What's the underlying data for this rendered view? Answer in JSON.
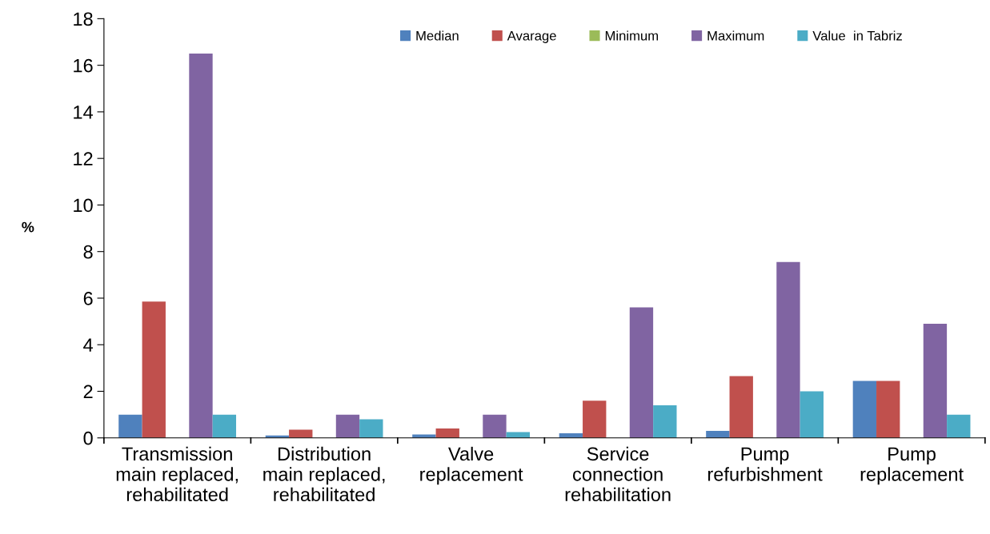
{
  "chart_data": {
    "type": "bar",
    "ylabel": "%",
    "categories": [
      "Transmission\nmain replaced,\nrehabilitated",
      "Distribution\nmain replaced,\nrehabilitated",
      "Valve\nreplacement",
      "Service\nconnection\nrehabilitation",
      "Pump\nrefurbishment",
      "Pump\nreplacement"
    ],
    "series": [
      {
        "name": "Median",
        "color": "#4f81bd",
        "values": [
          1.0,
          0.1,
          0.15,
          0.2,
          0.3,
          2.45
        ]
      },
      {
        "name": "Avarage",
        "color": "#c0504d",
        "values": [
          5.85,
          0.35,
          0.4,
          1.6,
          2.65,
          2.45
        ]
      },
      {
        "name": "Minimum",
        "color": "#9bbb59",
        "values": [
          0,
          0,
          0,
          0,
          0,
          0
        ]
      },
      {
        "name": "Maximum",
        "color": "#8064a2",
        "values": [
          16.5,
          1.0,
          1.0,
          5.6,
          7.55,
          4.9
        ]
      },
      {
        "name": "Value  in Tabriz",
        "color": "#4bacc6",
        "values": [
          1.0,
          0.8,
          0.25,
          1.4,
          2.0,
          1.0
        ]
      }
    ],
    "ylim": [
      0,
      18
    ],
    "yticks": [
      0,
      2,
      4,
      6,
      8,
      10,
      12,
      14,
      16,
      18
    ],
    "grid": false,
    "legend": "top right"
  }
}
